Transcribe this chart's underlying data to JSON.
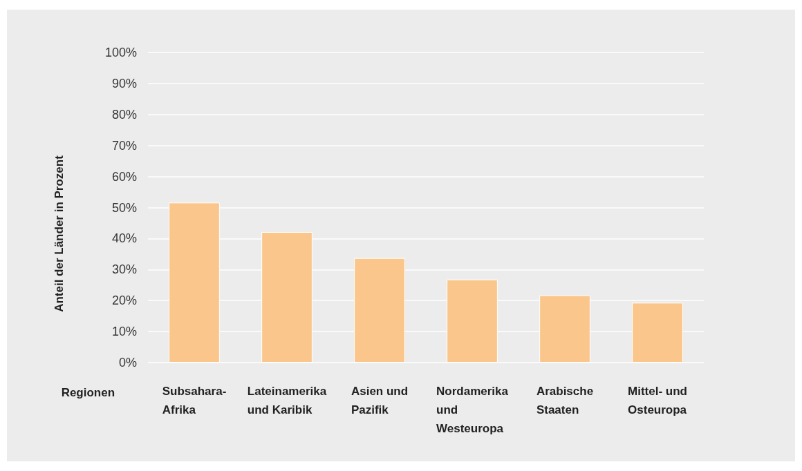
{
  "chart_data": {
    "type": "bar",
    "xlabel": "Regionen",
    "ylabel": "Anteil der Länder in Prozent",
    "categories": [
      "Subsahara-Afrika",
      "Lateinamerika und Karibik",
      "Asien und Pazifik",
      "Nordamerika und Westeuropa",
      "Arabische Staaten",
      "Mittel- und Osteuropa"
    ],
    "values": [
      51.6,
      42.1,
      33.7,
      26.8,
      21.7,
      19.3
    ],
    "color": "#fbc68b",
    "ylim": [
      0,
      100
    ],
    "yticks": [
      {
        "value": 0,
        "label": "0%"
      },
      {
        "value": 10,
        "label": "10%"
      },
      {
        "value": 20,
        "label": "20%"
      },
      {
        "value": 30,
        "label": "30%"
      },
      {
        "value": 40,
        "label": "40%"
      },
      {
        "value": 50,
        "label": "50%"
      },
      {
        "value": 60,
        "label": "60%"
      },
      {
        "value": 70,
        "label": "70%"
      },
      {
        "value": 80,
        "label": "80%"
      },
      {
        "value": 90,
        "label": "90%"
      },
      {
        "value": 100,
        "label": "100%"
      }
    ],
    "grid": "y"
  }
}
